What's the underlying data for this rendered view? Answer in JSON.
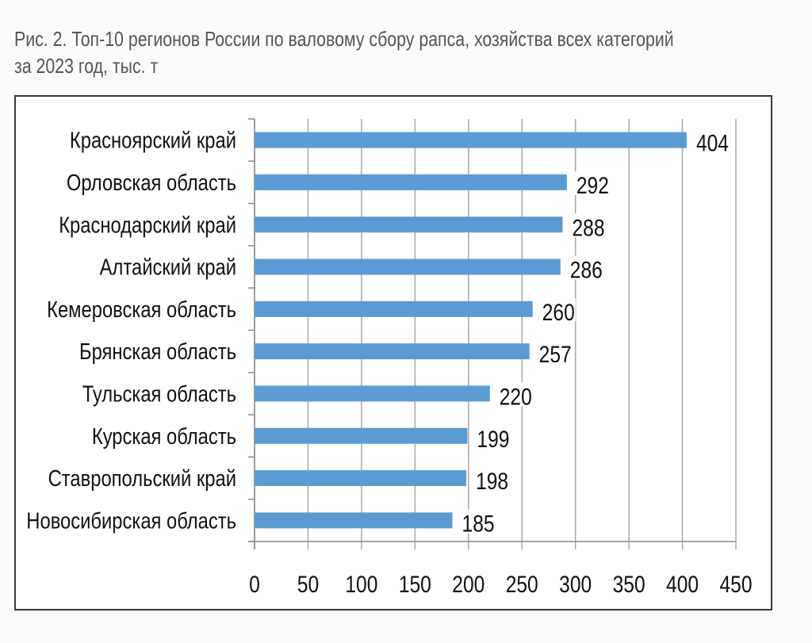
{
  "chart_data": {
    "type": "bar",
    "orientation": "horizontal",
    "title": [
      "Рис. 2. Топ-10 регионов России по валовому сбору рапса, хозяйства всех категорий",
      "за 2023 год, тыс. т"
    ],
    "categories": [
      "Красноярский край",
      "Орловская область",
      "Краснодарский край",
      "Алтайский край",
      "Кемеровская область",
      "Брянская область",
      "Тульская область",
      "Курская область",
      "Ставропольский край",
      "Новосибирская область"
    ],
    "values": [
      404,
      292,
      288,
      286,
      260,
      257,
      220,
      199,
      198,
      185
    ],
    "xlim": [
      0,
      450
    ],
    "xticks": [
      0,
      50,
      100,
      150,
      200,
      250,
      300,
      350,
      400,
      450
    ],
    "grid": "vertical",
    "legend": "none",
    "bar_color": "#5b9bd5",
    "data_labels": true
  }
}
